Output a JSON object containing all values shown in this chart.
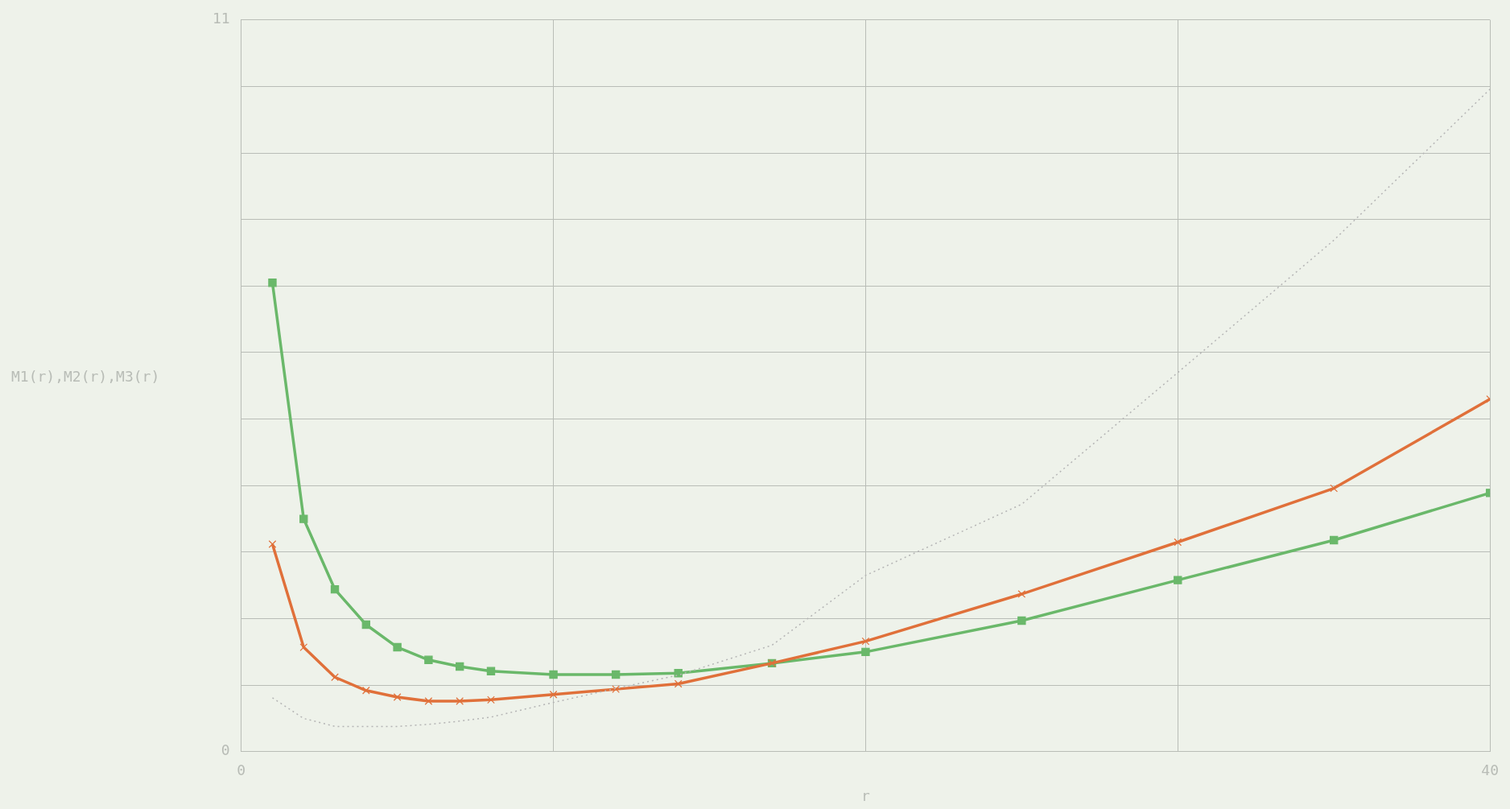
{
  "chart_data": {
    "type": "line",
    "xlabel": "r",
    "ylabel": "M1(r),M2(r),M3(r)",
    "x": [
      1,
      2,
      3,
      4,
      5,
      6,
      7,
      8,
      10,
      12,
      14,
      17,
      20,
      25,
      30,
      35,
      40
    ],
    "xlim": [
      0,
      40
    ],
    "xticks": [
      0,
      {
        "value": 10,
        "label": null
      },
      {
        "value": 20,
        "label": null
      },
      {
        "value": 30,
        "label": null
      },
      40
    ],
    "ylim": [
      0,
      11
    ],
    "yticks": [
      0,
      {
        "value": 1,
        "label": null
      },
      {
        "value": 2,
        "label": null
      },
      {
        "value": 3,
        "label": null
      },
      {
        "value": 4,
        "label": null
      },
      {
        "value": 5,
        "label": null
      },
      {
        "value": 6,
        "label": null
      },
      {
        "value": 7,
        "label": null
      },
      {
        "value": 8,
        "label": null
      },
      {
        "value": 9,
        "label": null
      },
      {
        "value": 10,
        "label": null
      },
      11
    ],
    "grid": true,
    "series": [
      {
        "color": "#b5b5b5",
        "line_style": "dotted",
        "marker": "none",
        "values": [
          0.81,
          0.5,
          0.38,
          0.38,
          0.38,
          0.41,
          0.46,
          0.52,
          0.74,
          0.95,
          1.15,
          1.6,
          2.65,
          3.72,
          5.7,
          7.69,
          9.96
        ]
      },
      {
        "color": "#e0703a",
        "line_style": "solid",
        "marker": "cross",
        "values": [
          3.12,
          1.57,
          1.12,
          0.92,
          0.82,
          0.76,
          0.76,
          0.78,
          0.86,
          0.94,
          1.02,
          1.33,
          1.66,
          2.37,
          3.15,
          3.96,
          5.3
        ]
      },
      {
        "color": "#6ab86a",
        "line_style": "solid",
        "marker": "square",
        "values": [
          7.05,
          3.5,
          2.44,
          1.91,
          1.57,
          1.38,
          1.28,
          1.21,
          1.16,
          1.16,
          1.18,
          1.33,
          1.5,
          1.97,
          2.58,
          3.18,
          3.89
        ]
      }
    ]
  }
}
